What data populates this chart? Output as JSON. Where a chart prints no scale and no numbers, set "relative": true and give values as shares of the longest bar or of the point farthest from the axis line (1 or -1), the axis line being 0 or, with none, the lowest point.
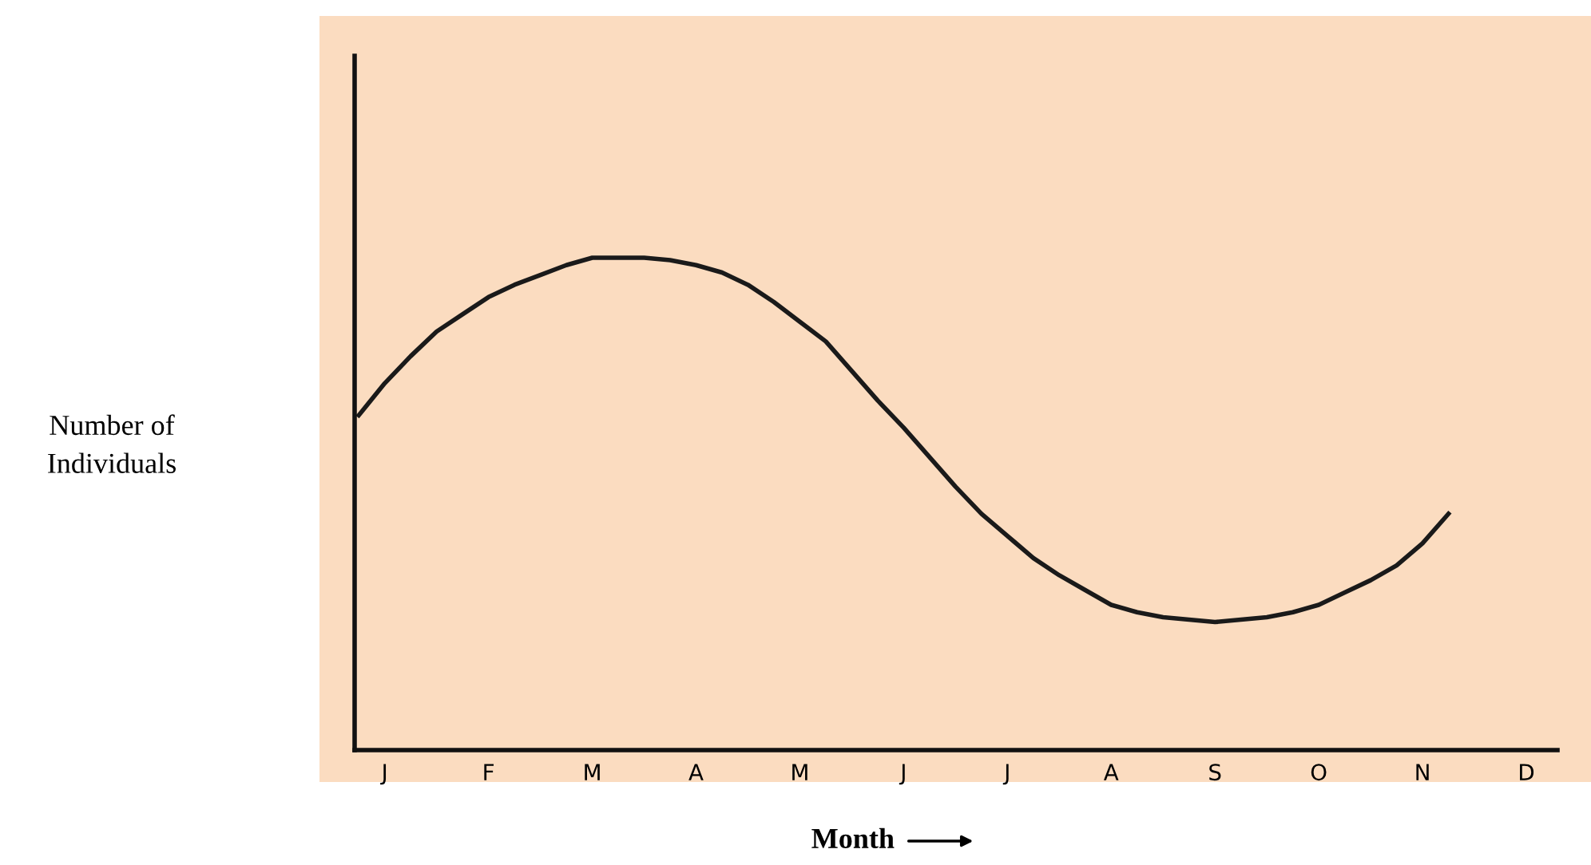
{
  "chart_data": {
    "type": "line",
    "relative": true,
    "xlabel": "Month",
    "annotations": [
      "Number of\nIndividuals"
    ],
    "categories": [
      null,
      "J",
      null,
      null,
      null,
      "F",
      null,
      null,
      null,
      "M",
      null,
      null,
      null,
      "A",
      null,
      null,
      null,
      "M",
      null,
      null,
      null,
      "J",
      null,
      null,
      null,
      "J",
      null,
      null,
      null,
      "A",
      null,
      null,
      null,
      "S",
      null,
      null,
      null,
      "O",
      null,
      null,
      null,
      "N",
      null,
      null,
      null,
      "D"
    ],
    "series": [
      {
        "color": "#1a1a1a",
        "values": [
          0.68,
          0.745,
          0.8,
          0.85,
          0.885,
          0.92,
          0.945,
          0.965,
          0.985,
          1.0,
          1.0,
          1.0,
          0.995,
          0.985,
          0.97,
          0.945,
          0.91,
          0.87,
          0.83,
          0.77,
          0.71,
          0.655,
          0.595,
          0.535,
          0.48,
          0.435,
          0.39,
          0.355,
          0.325,
          0.295,
          0.28,
          0.27,
          0.265,
          0.26,
          0.265,
          0.27,
          0.28,
          0.295,
          0.32,
          0.345,
          0.375,
          0.42,
          0.48,
          null,
          null,
          null
        ]
      }
    ],
    "grid": false,
    "legend": false,
    "marker": "none",
    "line_style": "solid"
  }
}
